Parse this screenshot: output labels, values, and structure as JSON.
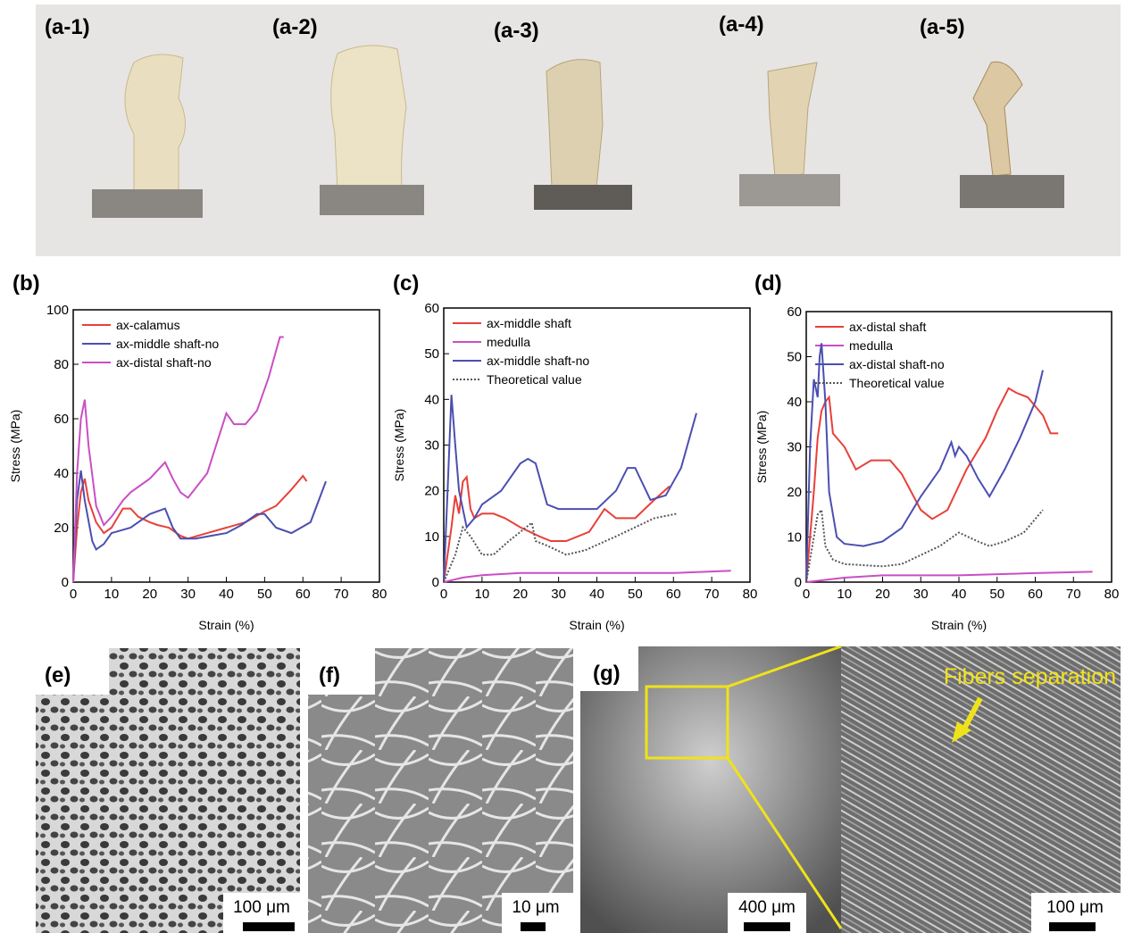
{
  "photos": {
    "labels": [
      "(a-1)",
      "(a-2)",
      "(a-3)",
      "(a-4)",
      "(a-5)"
    ]
  },
  "chart_data": [
    {
      "type": "line",
      "panel_label": "(b)",
      "x_label": "Strain (%)",
      "y_label": "Stress (MPa)",
      "xlim": [
        0,
        80
      ],
      "xticks": [
        0,
        10,
        20,
        30,
        40,
        50,
        60,
        70,
        80
      ],
      "ylim": [
        0,
        100
      ],
      "yticks": [
        0,
        20,
        40,
        60,
        80,
        100
      ],
      "series": [
        {
          "name": "ax-calamus",
          "color": "#e8403a",
          "style": "solid",
          "x": [
            0,
            1,
            2,
            3,
            4,
            6,
            8,
            10,
            13,
            15,
            17,
            20,
            22,
            25,
            28,
            30,
            35,
            40,
            45,
            50,
            53,
            57,
            60,
            61
          ],
          "values": [
            0,
            20,
            33,
            38,
            30,
            22,
            18,
            20,
            27,
            27,
            24,
            22,
            21,
            20,
            17,
            16,
            18,
            20,
            22,
            26,
            28,
            34,
            39,
            37
          ]
        },
        {
          "name": "ax-middle shaft-no",
          "color": "#4b4fb0",
          "style": "solid",
          "x": [
            0,
            1,
            2,
            3,
            5,
            6,
            8,
            10,
            15,
            20,
            24,
            26,
            28,
            32,
            36,
            40,
            44,
            48,
            50,
            53,
            57,
            62,
            66
          ],
          "values": [
            0,
            30,
            41,
            30,
            15,
            12,
            14,
            18,
            20,
            25,
            27,
            20,
            16,
            16,
            17,
            18,
            21,
            25,
            25,
            20,
            18,
            22,
            37
          ]
        },
        {
          "name": "ax-distal shaft-no",
          "color": "#c94fc5",
          "style": "solid",
          "x": [
            0,
            1,
            2,
            3,
            4,
            6,
            8,
            10,
            13,
            15,
            20,
            24,
            26,
            28,
            30,
            35,
            40,
            42,
            45,
            48,
            51,
            54,
            55
          ],
          "values": [
            0,
            40,
            60,
            67,
            50,
            28,
            21,
            24,
            30,
            33,
            38,
            44,
            38,
            33,
            31,
            40,
            62,
            58,
            58,
            63,
            75,
            90,
            90
          ]
        }
      ]
    },
    {
      "type": "line",
      "panel_label": "(c)",
      "x_label": "Strain (%)",
      "y_label": "Stress (MPa)",
      "xlim": [
        0,
        80
      ],
      "xticks": [
        0,
        10,
        20,
        30,
        40,
        50,
        60,
        70,
        80
      ],
      "ylim": [
        0,
        60
      ],
      "yticks": [
        0,
        10,
        20,
        30,
        40,
        50,
        60
      ],
      "series": [
        {
          "name": "ax-middle shaft",
          "color": "#e8403a",
          "style": "solid",
          "x": [
            0,
            2,
            3,
            4,
            5,
            6,
            7,
            8,
            10,
            13,
            16,
            20,
            25,
            28,
            32,
            38,
            42,
            45,
            50,
            55,
            59
          ],
          "values": [
            0,
            12,
            19,
            15,
            22,
            23,
            16,
            14,
            15,
            15,
            14,
            12,
            10,
            9,
            9,
            11,
            16,
            14,
            14,
            18,
            21
          ]
        },
        {
          "name": "medulla",
          "color": "#c94fc5",
          "style": "solid",
          "x": [
            0,
            5,
            10,
            20,
            40,
            60,
            75
          ],
          "values": [
            0,
            1,
            1.5,
            2,
            2,
            2,
            2.5
          ]
        },
        {
          "name": "ax-middle shaft-no",
          "color": "#4b4fb0",
          "style": "solid",
          "x": [
            0,
            1,
            2,
            3,
            4,
            6,
            8,
            10,
            15,
            20,
            22,
            24,
            27,
            30,
            40,
            45,
            48,
            50,
            54,
            58,
            62,
            66
          ],
          "values": [
            0,
            20,
            41,
            30,
            20,
            12,
            14,
            17,
            20,
            26,
            27,
            26,
            17,
            16,
            16,
            20,
            25,
            25,
            18,
            19,
            25,
            37
          ]
        },
        {
          "name": "Theoretical value",
          "color": "#555555",
          "style": "dotted",
          "x": [
            0,
            3,
            5,
            7,
            10,
            13,
            17,
            20,
            23,
            24,
            27,
            32,
            37,
            45,
            55,
            61
          ],
          "values": [
            0,
            6,
            12,
            10,
            6,
            6,
            9,
            11,
            13,
            9,
            8,
            6,
            7,
            10,
            14,
            15
          ]
        }
      ]
    },
    {
      "type": "line",
      "panel_label": "(d)",
      "x_label": "Strain (%)",
      "y_label": "Stress (MPa)",
      "xlim": [
        0,
        80
      ],
      "xticks": [
        0,
        10,
        20,
        30,
        40,
        50,
        60,
        70,
        80
      ],
      "ylim": [
        0,
        60
      ],
      "yticks": [
        0,
        10,
        20,
        30,
        40,
        50,
        60
      ],
      "series": [
        {
          "name": "ax-distal shaft",
          "color": "#e8403a",
          "style": "solid",
          "x": [
            0,
            2,
            3,
            4,
            5,
            6,
            7,
            10,
            13,
            17,
            22,
            25,
            30,
            33,
            37,
            42,
            47,
            50,
            53,
            55,
            58,
            62,
            64,
            66
          ],
          "values": [
            0,
            20,
            32,
            38,
            40,
            41,
            33,
            30,
            25,
            27,
            27,
            24,
            16,
            14,
            16,
            25,
            32,
            38,
            43,
            42,
            41,
            37,
            33,
            33
          ]
        },
        {
          "name": "medulla",
          "color": "#c94fc5",
          "style": "solid",
          "x": [
            0,
            10,
            20,
            40,
            60,
            75
          ],
          "values": [
            0,
            1,
            1.5,
            1.5,
            2,
            2.3
          ]
        },
        {
          "name": "ax-distal shaft-no",
          "color": "#4b4fb0",
          "style": "solid",
          "x": [
            0,
            1,
            2,
            3,
            3.5,
            4,
            5,
            6,
            8,
            10,
            15,
            20,
            25,
            30,
            35,
            38,
            39,
            40,
            42,
            45,
            48,
            52,
            56,
            60,
            62
          ],
          "values": [
            0,
            30,
            45,
            41,
            50,
            53,
            40,
            20,
            10,
            8.5,
            8,
            9,
            12,
            19,
            25,
            31,
            28,
            30,
            28,
            23,
            19,
            25,
            32,
            40,
            47
          ]
        },
        {
          "name": "Theoretical value",
          "color": "#555555",
          "style": "dotted",
          "x": [
            0,
            2,
            3,
            4,
            5,
            7,
            10,
            20,
            25,
            30,
            35,
            40,
            45,
            48,
            52,
            57,
            62
          ],
          "values": [
            0,
            10,
            15,
            16,
            8,
            5,
            4,
            3.5,
            4,
            6,
            8,
            11,
            9,
            8,
            9,
            11,
            16
          ]
        }
      ]
    }
  ],
  "micrographs": {
    "panels": [
      {
        "label": "(e)",
        "scale_bars": [
          "100 μm"
        ]
      },
      {
        "label": "(f)",
        "scale_bars": [
          "10 μm"
        ]
      },
      {
        "label": "(g)",
        "scale_bars": [
          "400 μm",
          "100 μm"
        ],
        "annotation": "Fibers separation"
      }
    ]
  }
}
